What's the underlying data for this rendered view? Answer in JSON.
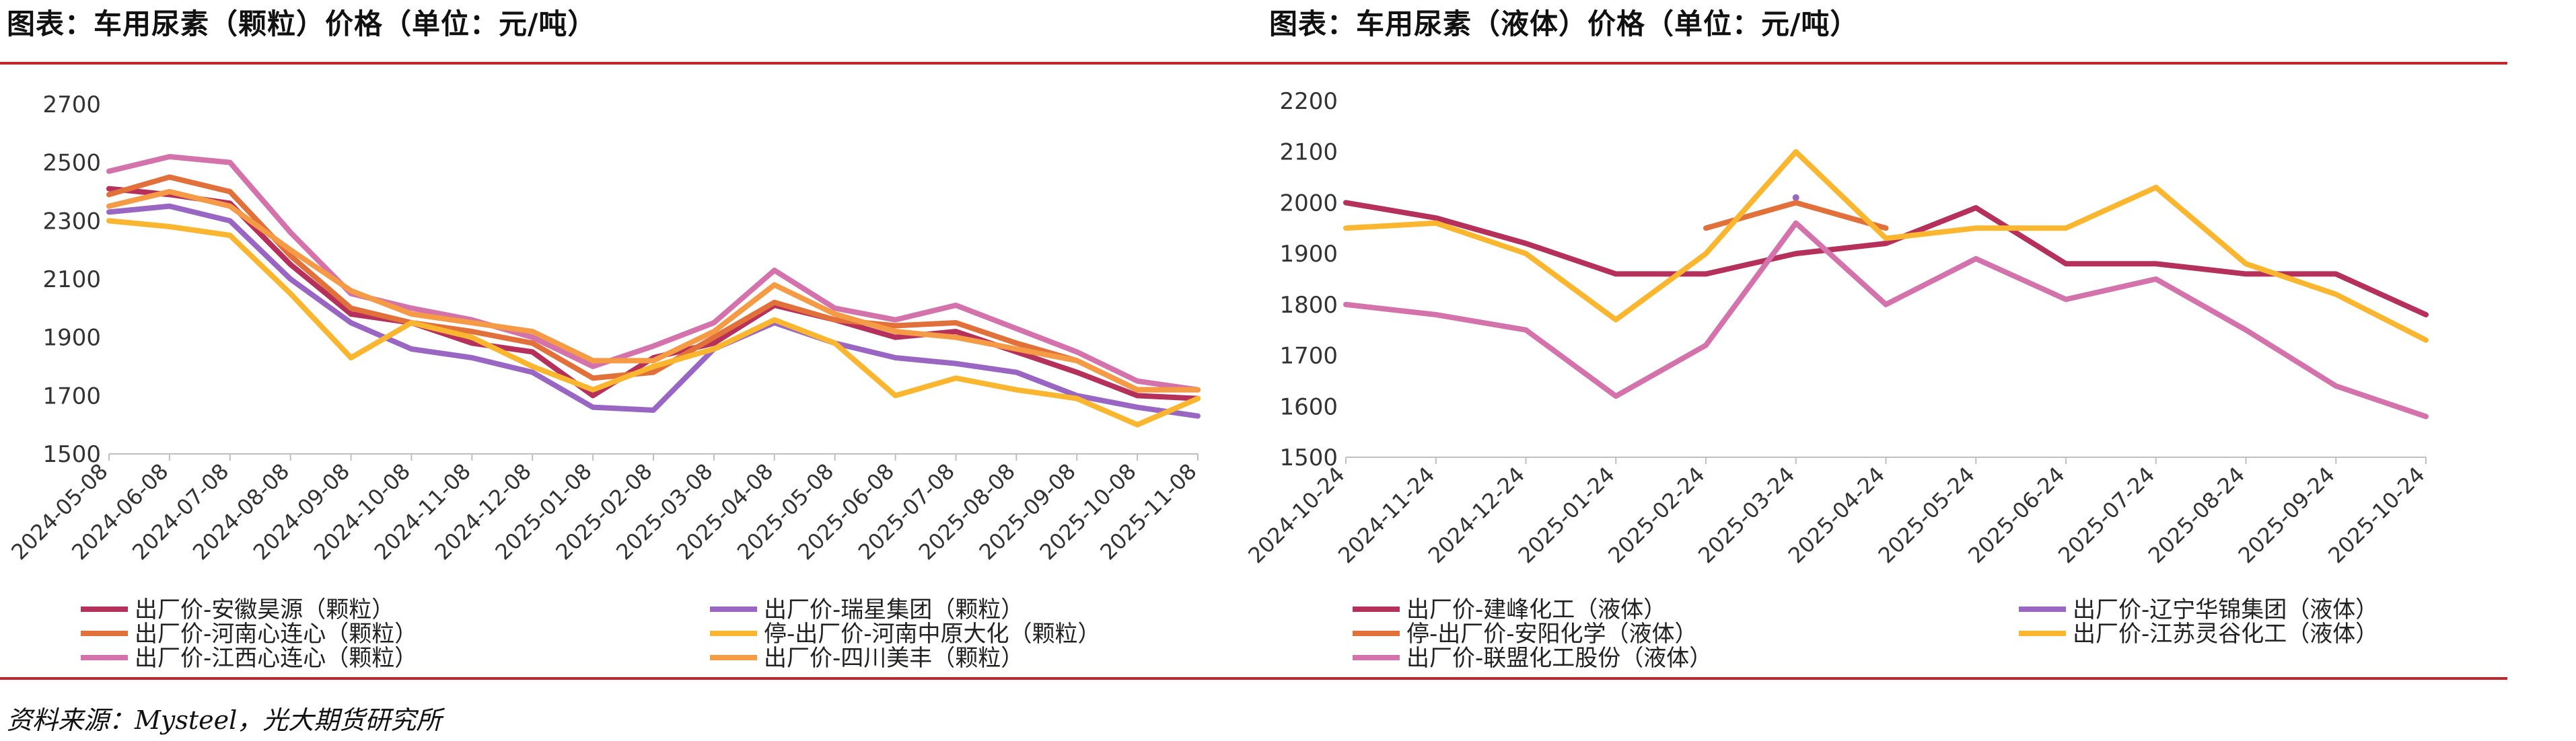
{
  "source": "资料来源：Mysteel，光大期货研究所",
  "chart_data": [
    {
      "type": "line",
      "title": "图表：车用尿素（颗粒）价格（单位：元/吨）",
      "xlabel": "",
      "ylabel": "",
      "ylim": [
        1500,
        2700
      ],
      "yticks": [
        "2700",
        "2500",
        "2300",
        "2100",
        "1900",
        "1700",
        "1500"
      ],
      "x": [
        "2024-05-08",
        "2024-06-08",
        "2024-07-08",
        "2024-08-08",
        "2024-09-08",
        "2024-10-08",
        "2024-11-08",
        "2024-12-08",
        "2025-01-08",
        "2025-02-08",
        "2025-03-08",
        "2025-04-08",
        "2025-05-08",
        "2025-06-08",
        "2025-07-08",
        "2025-08-08",
        "2025-09-08",
        "2025-10-08",
        "2025-11-08"
      ],
      "series": [
        {
          "name": "出厂价-安徽昊源（颗粒）",
          "color": "#b5305a",
          "values": [
            2410,
            2390,
            2360,
            2150,
            1980,
            1950,
            1880,
            1850,
            1700,
            1830,
            1880,
            2010,
            1960,
            1900,
            1920,
            1850,
            1780,
            1700,
            1690
          ]
        },
        {
          "name": "出厂价-瑞星集团（颗粒）",
          "color": "#9966c4",
          "values": [
            2330,
            2350,
            2300,
            2100,
            1950,
            1860,
            1830,
            1780,
            1660,
            1650,
            1860,
            1950,
            1880,
            1830,
            1810,
            1780,
            1700,
            1660,
            1630
          ]
        },
        {
          "name": "出厂价-河南心连心（颗粒）",
          "color": "#e2703a",
          "values": [
            2390,
            2450,
            2400,
            2180,
            2000,
            1950,
            1920,
            1880,
            1760,
            1780,
            1900,
            2020,
            1960,
            1940,
            1950,
            1880,
            1820,
            1720,
            1720
          ]
        },
        {
          "name": "停-出厂价-河南中原大化（颗粒）",
          "color": "#fbb630",
          "values": [
            2300,
            2280,
            2250,
            2050,
            1830,
            1950,
            1900,
            1800,
            1720,
            1800,
            1860,
            1960,
            1880,
            1700,
            1760,
            1720,
            1690,
            1600,
            1690
          ]
        },
        {
          "name": "出厂价-江西心连心（颗粒）",
          "color": "#d472ac",
          "values": [
            2470,
            2520,
            2500,
            2260,
            2050,
            2000,
            1960,
            1900,
            1800,
            1870,
            1950,
            2130,
            2000,
            1960,
            2010,
            1930,
            1850,
            1750,
            1720
          ]
        },
        {
          "name": "出厂价-四川美丰（颗粒）",
          "color": "#f59a45",
          "values": [
            2350,
            2400,
            2350,
            2200,
            2060,
            1980,
            1950,
            1920,
            1820,
            1820,
            1920,
            2080,
            1980,
            1920,
            1900,
            1860,
            1820,
            1720,
            1720
          ]
        }
      ]
    },
    {
      "type": "line",
      "title": "图表：车用尿素（液体）价格（单位：元/吨）",
      "xlabel": "",
      "ylabel": "",
      "ylim": [
        1500,
        2200
      ],
      "yticks": [
        "2200",
        "2100",
        "2000",
        "1900",
        "1800",
        "1700",
        "1600",
        "1500"
      ],
      "x": [
        "2024-10-24",
        "2024-11-24",
        "2024-12-24",
        "2025-01-24",
        "2025-02-24",
        "2025-03-24",
        "2025-04-24",
        "2025-05-24",
        "2025-06-24",
        "2025-07-24",
        "2025-08-24",
        "2025-09-24",
        "2025-10-24"
      ],
      "series": [
        {
          "name": "出厂价-建峰化工（液体）",
          "color": "#b5305a",
          "values": [
            2000,
            1970,
            1920,
            1860,
            1860,
            1900,
            1920,
            1990,
            1880,
            1880,
            1860,
            1860,
            1780
          ]
        },
        {
          "name": "出厂价-辽宁华锦集团（液体）",
          "color": "#9966c4",
          "values": [
            null,
            null,
            null,
            null,
            null,
            2010,
            null,
            null,
            null,
            null,
            null,
            null,
            null
          ]
        },
        {
          "name": "停-出厂价-安阳化学（液体）",
          "color": "#e2703a",
          "values": [
            null,
            null,
            null,
            null,
            1950,
            2000,
            1950,
            null,
            null,
            null,
            null,
            null,
            null
          ]
        },
        {
          "name": "出厂价-江苏灵谷化工（液体）",
          "color": "#fbb630",
          "values": [
            1950,
            1960,
            1900,
            1770,
            1900,
            2100,
            1930,
            1950,
            1950,
            2030,
            1880,
            1820,
            1730
          ]
        },
        {
          "name": "出厂价-联盟化工股份（液体）",
          "color": "#d472ac",
          "values": [
            1800,
            1780,
            1750,
            1620,
            1720,
            1960,
            1800,
            1890,
            1810,
            1850,
            1750,
            1640,
            1580
          ]
        }
      ]
    }
  ]
}
